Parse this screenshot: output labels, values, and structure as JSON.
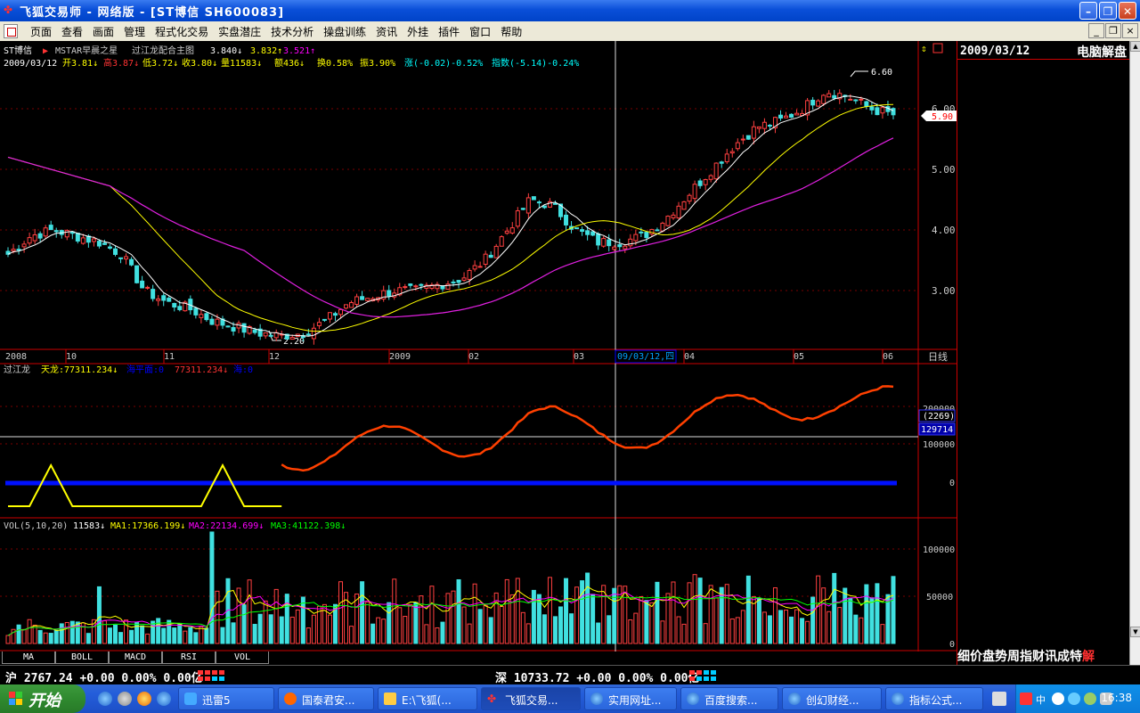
{
  "window": {
    "title": "飞狐交易师 - 网络版 - [ST博信  SH600083]"
  },
  "menu": [
    "页面",
    "查看",
    "画面",
    "管理",
    "程式化交易",
    "实盘潜庄",
    "技术分析",
    "操盘训练",
    "资讯",
    "外挂",
    "插件",
    "窗口",
    "帮助"
  ],
  "main_chart": {
    "header1": [
      "ST博信",
      "▶",
      "MSTAR早晨之星",
      "过江龙配合主图",
      "3.840↓",
      "3.832↑",
      "3.521↑"
    ],
    "header2": [
      "2009/03/12",
      "开3.81↓",
      "高3.87↓",
      "低3.72↓",
      "收3.80↓",
      "量11583↓",
      "额436↓",
      "换0.58%",
      "振3.90%",
      "涨(-0.02)-0.52%",
      "指数(-5.14)-0.24%"
    ],
    "y_ticks": [
      "6.00",
      "5.00",
      "4.00",
      "3.00"
    ],
    "price_tag": "5.90",
    "hi_label": "6.60",
    "lo_label": "2.20",
    "cursor_date": "09/03/12,四",
    "x_labels": [
      "2008",
      "10",
      "11",
      "12",
      "2009",
      "02",
      "03",
      "04",
      "05",
      "06"
    ],
    "period": "日线"
  },
  "indicator": {
    "header": [
      "过江龙",
      "天龙:77311.234↓",
      "海平面:0",
      "77311.234↓",
      "海:0"
    ],
    "y_ticks": [
      "200000",
      "100000",
      "0"
    ],
    "tag1": "(2269)",
    "tag2": "129714"
  },
  "volume": {
    "header": [
      "VOL(5,10,20)",
      "11583↓",
      "MA1:17366.199↓",
      "MA2:22134.699↓",
      "MA3:41122.398↓"
    ],
    "y_ticks": [
      "100000",
      "50000",
      "0"
    ]
  },
  "tabs": [
    "MA",
    "BOLL",
    "MACD",
    "RSI",
    "VOL"
  ],
  "right_panel": {
    "date": "2009/03/12",
    "brand": "电脑解盘",
    "footer_a": "细价盘势周指财讯成特",
    "footer_b": "解"
  },
  "status": {
    "sh": "沪 2767.24 +0.00 0.00% 0.00亿",
    "sz": "深 10733.72 +0.00 0.00% 0.00亿"
  },
  "taskbar": {
    "start": "开始",
    "buttons": [
      "迅雷5",
      "国泰君安...",
      "E:\\飞狐(...",
      "飞狐交易...",
      "实用网址...",
      "百度搜索...",
      "创幻财经...",
      "指标公式..."
    ],
    "clock": "16:38"
  },
  "chart_data": {
    "type": "candlestick",
    "x_axis_labels": [
      "2008",
      "10",
      "11",
      "12",
      "2009",
      "02",
      "03",
      "04",
      "05",
      "06"
    ],
    "y_ticks": [
      3.0,
      4.0,
      5.0,
      6.0
    ],
    "series_shown": [
      "price",
      "MA short (white)",
      "MA mid (yellow)",
      "MA long (magenta)",
      "过江龙 indicator",
      "volume"
    ],
    "approx_price_path": [
      3.6,
      3.9,
      4.0,
      3.9,
      3.8,
      3.6,
      3.0,
      2.8,
      2.7,
      2.5,
      2.4,
      2.3,
      2.25,
      2.3,
      2.5,
      2.8,
      2.9,
      3.0,
      3.0,
      3.1,
      3.2,
      3.5,
      4.0,
      4.5,
      4.4,
      4.0,
      3.8,
      3.8,
      3.9,
      4.2,
      4.6,
      5.0,
      5.4,
      5.7,
      5.8,
      6.0,
      6.3,
      6.2,
      6.0,
      5.9
    ],
    "highest": 6.6,
    "lowest": 2.2,
    "last_close": 5.9
  }
}
